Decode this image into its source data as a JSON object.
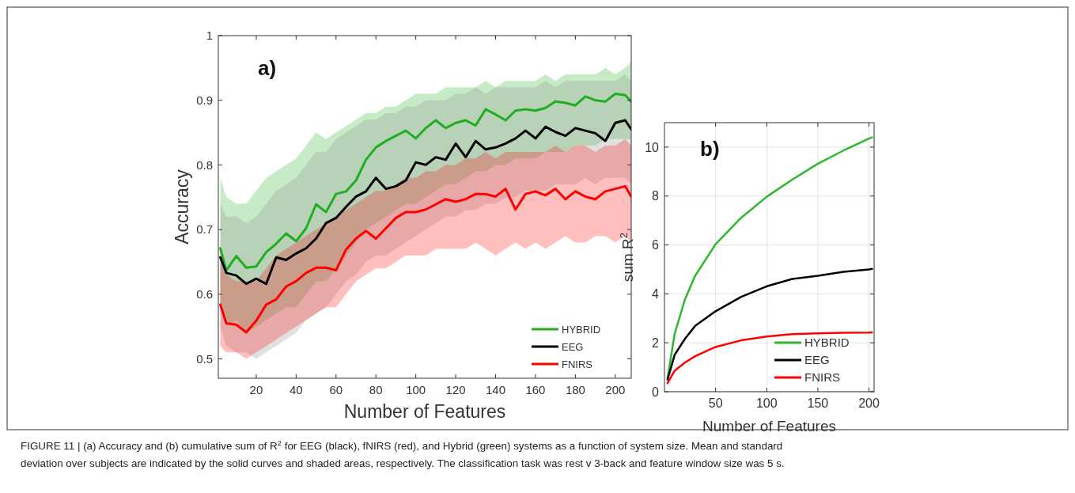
{
  "chart_data": [
    {
      "type": "line",
      "xlabel": "Number of Features",
      "ylabel": "Accuracy",
      "xlim": [
        1,
        208
      ],
      "ylim": [
        0.47,
        1
      ],
      "xticks": [
        20,
        40,
        60,
        80,
        100,
        120,
        140,
        160,
        180,
        200
      ],
      "yticks": [
        0.5,
        0.6,
        0.7,
        0.8,
        0.9,
        1
      ],
      "grid": false,
      "legend": "bottom right",
      "x": [
        2,
        5,
        10,
        15,
        20,
        25,
        30,
        35,
        40,
        45,
        50,
        55,
        60,
        65,
        70,
        75,
        80,
        85,
        90,
        95,
        100,
        105,
        110,
        115,
        120,
        125,
        130,
        135,
        140,
        145,
        150,
        155,
        160,
        165,
        170,
        175,
        180,
        185,
        190,
        195,
        200,
        205,
        208
      ],
      "annotations": [
        "a)",
        "FIGURE 11 | (a) Accuracy and (b) cumulative sum of R$^{2}$ for EEG (black), fNIRS (red), and Hybrid (green) systems as a function of system size. Mean and standard",
        "deviation over subjects are indicated by the solid curves and shaded areas, respectively. The classification task was rest v 3-back and feature window size was 5 s."
      ],
      "series": [
        {
          "name": "HYBRID",
          "color": "#1fae1f",
          "values": [
            0.671,
            0.637,
            0.659,
            0.641,
            0.643,
            0.665,
            0.678,
            0.694,
            0.682,
            0.702,
            0.739,
            0.727,
            0.755,
            0.759,
            0.776,
            0.808,
            0.827,
            0.837,
            0.845,
            0.853,
            0.841,
            0.857,
            0.869,
            0.857,
            0.865,
            0.869,
            0.861,
            0.886,
            0.878,
            0.869,
            0.884,
            0.886,
            0.884,
            0.888,
            0.898,
            0.896,
            0.892,
            0.906,
            0.9,
            0.898,
            0.91,
            0.908,
            0.898
          ],
          "upper": [
            0.78,
            0.75,
            0.74,
            0.74,
            0.76,
            0.78,
            0.79,
            0.8,
            0.81,
            0.83,
            0.85,
            0.84,
            0.85,
            0.86,
            0.87,
            0.88,
            0.88,
            0.89,
            0.89,
            0.9,
            0.91,
            0.91,
            0.91,
            0.92,
            0.92,
            0.92,
            0.92,
            0.93,
            0.92,
            0.93,
            0.93,
            0.93,
            0.93,
            0.94,
            0.93,
            0.94,
            0.94,
            0.94,
            0.94,
            0.95,
            0.94,
            0.95,
            0.96
          ],
          "lower": [
            0.58,
            0.55,
            0.56,
            0.54,
            0.55,
            0.56,
            0.57,
            0.58,
            0.58,
            0.6,
            0.62,
            0.62,
            0.64,
            0.66,
            0.68,
            0.7,
            0.71,
            0.72,
            0.73,
            0.74,
            0.74,
            0.75,
            0.76,
            0.77,
            0.77,
            0.78,
            0.79,
            0.79,
            0.8,
            0.8,
            0.81,
            0.81,
            0.81,
            0.82,
            0.82,
            0.82,
            0.83,
            0.83,
            0.83,
            0.84,
            0.84,
            0.84,
            0.84
          ]
        },
        {
          "name": "EEG",
          "color": "#000000",
          "values": [
            0.657,
            0.633,
            0.629,
            0.616,
            0.624,
            0.616,
            0.657,
            0.653,
            0.663,
            0.671,
            0.686,
            0.71,
            0.718,
            0.735,
            0.751,
            0.759,
            0.78,
            0.763,
            0.767,
            0.776,
            0.804,
            0.8,
            0.812,
            0.808,
            0.833,
            0.812,
            0.837,
            0.824,
            0.827,
            0.833,
            0.841,
            0.853,
            0.841,
            0.859,
            0.851,
            0.845,
            0.857,
            0.853,
            0.849,
            0.837,
            0.865,
            0.869,
            0.855
          ],
          "upper": [
            0.74,
            0.72,
            0.72,
            0.71,
            0.72,
            0.74,
            0.76,
            0.77,
            0.78,
            0.8,
            0.82,
            0.82,
            0.84,
            0.85,
            0.86,
            0.87,
            0.87,
            0.88,
            0.88,
            0.89,
            0.89,
            0.9,
            0.9,
            0.9,
            0.91,
            0.91,
            0.92,
            0.91,
            0.92,
            0.92,
            0.92,
            0.92,
            0.92,
            0.93,
            0.92,
            0.93,
            0.93,
            0.93,
            0.93,
            0.93,
            0.93,
            0.94,
            0.93
          ],
          "lower": [
            0.55,
            0.52,
            0.51,
            0.51,
            0.5,
            0.51,
            0.52,
            0.53,
            0.54,
            0.56,
            0.57,
            0.58,
            0.6,
            0.62,
            0.63,
            0.65,
            0.66,
            0.66,
            0.67,
            0.68,
            0.69,
            0.7,
            0.71,
            0.72,
            0.72,
            0.73,
            0.73,
            0.74,
            0.74,
            0.75,
            0.75,
            0.76,
            0.76,
            0.76,
            0.77,
            0.77,
            0.77,
            0.78,
            0.77,
            0.78,
            0.78,
            0.78,
            0.77
          ]
        },
        {
          "name": "FNIRS",
          "color": "#ff0000",
          "values": [
            0.584,
            0.555,
            0.553,
            0.541,
            0.559,
            0.584,
            0.592,
            0.612,
            0.62,
            0.633,
            0.641,
            0.641,
            0.637,
            0.669,
            0.686,
            0.698,
            0.686,
            0.702,
            0.718,
            0.727,
            0.727,
            0.731,
            0.739,
            0.747,
            0.743,
            0.747,
            0.755,
            0.755,
            0.751,
            0.763,
            0.731,
            0.755,
            0.759,
            0.753,
            0.763,
            0.747,
            0.759,
            0.751,
            0.747,
            0.759,
            0.763,
            0.767,
            0.751
          ],
          "upper": [
            0.65,
            0.63,
            0.62,
            0.62,
            0.62,
            0.64,
            0.66,
            0.67,
            0.68,
            0.69,
            0.7,
            0.71,
            0.72,
            0.73,
            0.74,
            0.75,
            0.76,
            0.76,
            0.77,
            0.78,
            0.78,
            0.79,
            0.79,
            0.8,
            0.8,
            0.81,
            0.81,
            0.82,
            0.81,
            0.82,
            0.82,
            0.82,
            0.82,
            0.82,
            0.83,
            0.82,
            0.83,
            0.83,
            0.82,
            0.83,
            0.83,
            0.84,
            0.83
          ],
          "lower": [
            0.52,
            0.51,
            0.51,
            0.5,
            0.51,
            0.52,
            0.53,
            0.54,
            0.55,
            0.56,
            0.57,
            0.58,
            0.58,
            0.6,
            0.62,
            0.63,
            0.64,
            0.64,
            0.65,
            0.66,
            0.66,
            0.66,
            0.67,
            0.67,
            0.67,
            0.67,
            0.68,
            0.67,
            0.66,
            0.67,
            0.68,
            0.67,
            0.68,
            0.67,
            0.68,
            0.69,
            0.68,
            0.68,
            0.69,
            0.69,
            0.68,
            0.69,
            0.68
          ]
        }
      ]
    },
    {
      "type": "line",
      "xlabel": "Number of Features",
      "ylabel": "sum R$^{2}$",
      "xlim": [
        0,
        205
      ],
      "ylim": [
        0,
        11
      ],
      "xticks": [
        50,
        100,
        150,
        200
      ],
      "yticks": [
        0,
        2,
        4,
        6,
        8,
        10
      ],
      "grid": true,
      "legend": "bottom right",
      "x": [
        3,
        10,
        20,
        30,
        50,
        75,
        100,
        125,
        150,
        175,
        200,
        203
      ],
      "annotations": [
        "b)"
      ],
      "series": [
        {
          "name": "HYBRID",
          "color": "#2db82d",
          "values": [
            0.54,
            2.37,
            3.77,
            4.74,
            6.03,
            7.11,
            7.97,
            8.67,
            9.32,
            9.86,
            10.35,
            10.4
          ]
        },
        {
          "name": "EEG",
          "color": "#000000",
          "values": [
            0.5,
            1.51,
            2.16,
            2.69,
            3.29,
            3.88,
            4.31,
            4.61,
            4.74,
            4.9,
            5.0,
            5.02
          ]
        },
        {
          "name": "FNIRS",
          "color": "#ff0000",
          "values": [
            0.35,
            0.86,
            1.19,
            1.45,
            1.83,
            2.1,
            2.26,
            2.35,
            2.39,
            2.41,
            2.42,
            2.43
          ]
        }
      ]
    }
  ]
}
